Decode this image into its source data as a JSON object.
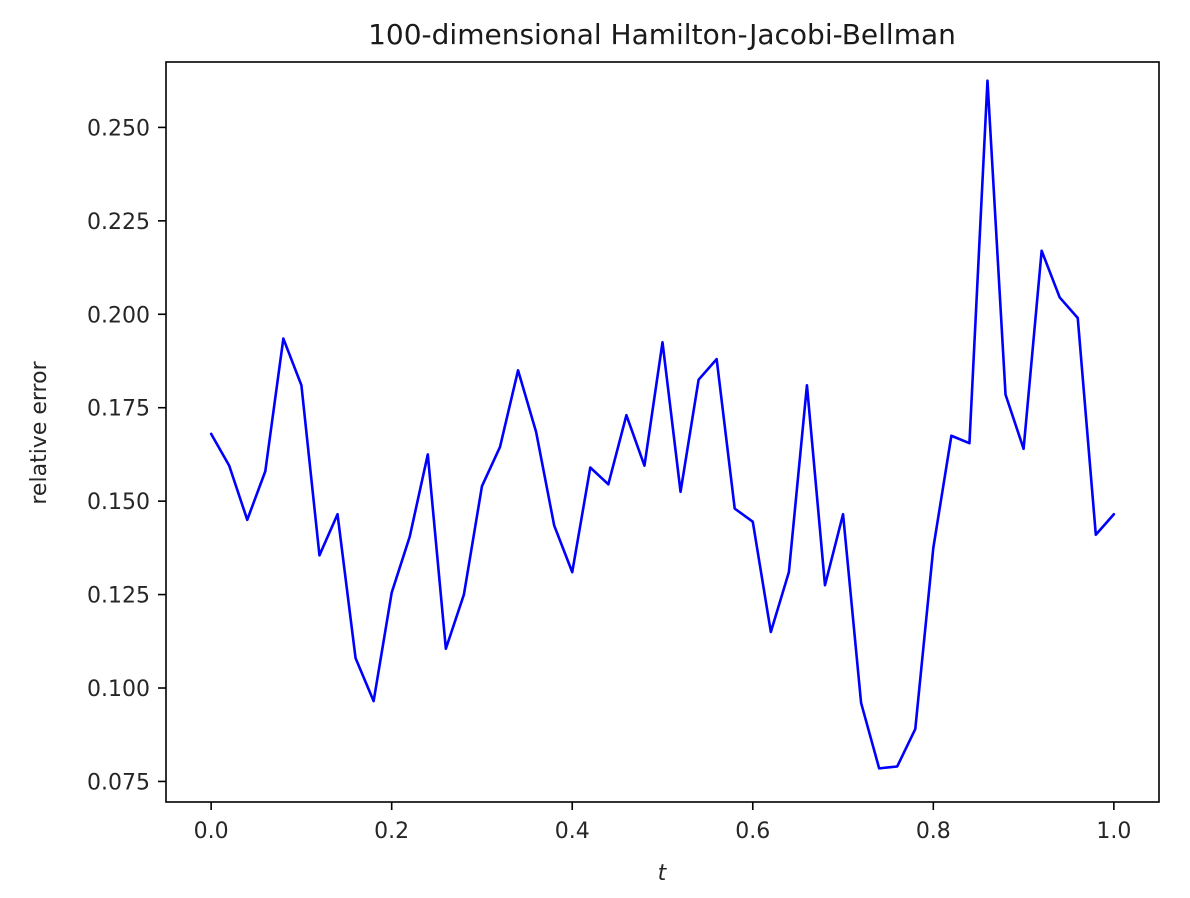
{
  "chart_data": {
    "type": "line",
    "title": "100-dimensional Hamilton-Jacobi-Bellman",
    "xlabel": "t",
    "ylabel": "relative error",
    "xlim": [
      -0.05,
      1.05
    ],
    "ylim": [
      0.0695,
      0.2675
    ],
    "xticks": [
      0.0,
      0.2,
      0.4,
      0.6,
      0.8,
      1.0
    ],
    "xtick_labels": [
      "0.0",
      "0.2",
      "0.4",
      "0.6",
      "0.8",
      "1.0"
    ],
    "yticks": [
      0.075,
      0.1,
      0.125,
      0.15,
      0.175,
      0.2,
      0.225,
      0.25
    ],
    "ytick_labels": [
      "0.075",
      "0.100",
      "0.125",
      "0.150",
      "0.175",
      "0.200",
      "0.225",
      "0.250"
    ],
    "grid": false,
    "series": [
      {
        "color": "#0000ff",
        "x": [
          0.0,
          0.02,
          0.04,
          0.06,
          0.08,
          0.1,
          0.12,
          0.14,
          0.16,
          0.18,
          0.2,
          0.22,
          0.24,
          0.26,
          0.28,
          0.3,
          0.32,
          0.34,
          0.36,
          0.38,
          0.4,
          0.42,
          0.44,
          0.46,
          0.48,
          0.5,
          0.52,
          0.54,
          0.56,
          0.58,
          0.6,
          0.62,
          0.64,
          0.66,
          0.68,
          0.7,
          0.72,
          0.74,
          0.76,
          0.78,
          0.8,
          0.82,
          0.84,
          0.86,
          0.88,
          0.9,
          0.92,
          0.94,
          0.96,
          0.98,
          1.0
        ],
        "y": [
          0.168,
          0.1595,
          0.145,
          0.158,
          0.1935,
          0.181,
          0.1355,
          0.1465,
          0.108,
          0.0965,
          0.1255,
          0.1405,
          0.1625,
          0.1105,
          0.125,
          0.154,
          0.1645,
          0.185,
          0.1685,
          0.1435,
          0.131,
          0.159,
          0.1545,
          0.173,
          0.1595,
          0.1925,
          0.1525,
          0.1825,
          0.188,
          0.148,
          0.1445,
          0.115,
          0.131,
          0.181,
          0.1275,
          0.1465,
          0.096,
          0.0785,
          0.079,
          0.089,
          0.1375,
          0.1675,
          0.1655,
          0.2625,
          0.1785,
          0.164,
          0.217,
          0.2045,
          0.199,
          0.141,
          0.1465
        ]
      }
    ]
  }
}
